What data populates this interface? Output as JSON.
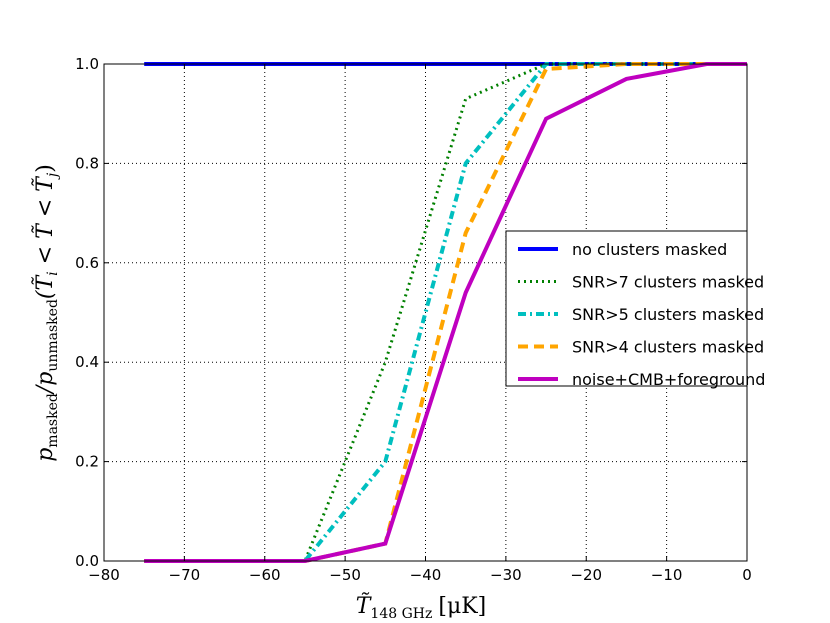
{
  "chart_data": {
    "type": "line",
    "xlabel": "T̃_148 GHz [μK]",
    "xlabel_main": "T̃",
    "xlabel_sub": "148 GHz",
    "xlabel_unit": "[μK]",
    "ylabel": "p_masked/p_unmasked(T̃_i < T̃ < T̃_j)",
    "ylabel_main": "p",
    "ylabel_sub1": "masked",
    "ylabel_sep": "/p",
    "ylabel_sub2": "unmasked",
    "ylabel_tail": "(T̃",
    "ylabel_i": "i",
    "ylabel_lt1": " < T̃ < T̃",
    "ylabel_j": "j",
    "ylabel_close": ")",
    "xlim": [
      -80,
      0
    ],
    "ylim": [
      0.0,
      1.0
    ],
    "xticks": [
      -80,
      -70,
      -60,
      -50,
      -40,
      -30,
      -20,
      -10,
      0
    ],
    "xtick_labels": [
      "−80",
      "−70",
      "−60",
      "−50",
      "−40",
      "−30",
      "−20",
      "−10",
      "0"
    ],
    "yticks": [
      0.0,
      0.2,
      0.4,
      0.6,
      0.8,
      1.0
    ],
    "ytick_labels": [
      "0.0",
      "0.2",
      "0.4",
      "0.6",
      "0.8",
      "1.0"
    ],
    "grid": true,
    "legend_position": "center-right",
    "series": [
      {
        "name": "no clusters masked",
        "color": "#0000ff",
        "style": "solid",
        "x": [
          -75,
          -65,
          -55,
          -45,
          -35,
          -25,
          -15,
          -5,
          0
        ],
        "y": [
          1.0,
          1.0,
          1.0,
          1.0,
          1.0,
          1.0,
          1.0,
          1.0,
          1.0
        ]
      },
      {
        "name": "SNR>7 clusters masked",
        "color": "#008000",
        "style": "dotted",
        "x": [
          -75,
          -65,
          -55,
          -45,
          -35,
          -25,
          -15,
          -5,
          0
        ],
        "y": [
          0.0,
          0.0,
          0.0,
          0.4,
          0.93,
          1.0,
          1.0,
          1.0,
          1.0
        ]
      },
      {
        "name": "SNR>5 clusters masked",
        "color": "#00bfbf",
        "style": "dashdot",
        "x": [
          -75,
          -65,
          -55,
          -45,
          -35,
          -25,
          -15,
          -5,
          0
        ],
        "y": [
          0.0,
          0.0,
          0.0,
          0.2,
          0.8,
          1.0,
          1.0,
          1.0,
          1.0
        ]
      },
      {
        "name": "SNR>4 clusters masked",
        "color": "#ffa500",
        "style": "dashed",
        "x": [
          -75,
          -65,
          -55,
          -45,
          -35,
          -25,
          -15,
          -5,
          0
        ],
        "y": [
          0.0,
          0.0,
          0.0,
          0.035,
          0.66,
          0.99,
          1.0,
          1.0,
          1.0
        ]
      },
      {
        "name": "noise+CMB+foreground",
        "color": "#bf00bf",
        "style": "solid",
        "x": [
          -75,
          -65,
          -55,
          -45,
          -35,
          -25,
          -15,
          -5,
          0
        ],
        "y": [
          0.0,
          0.0,
          0.0,
          0.035,
          0.54,
          0.89,
          0.97,
          1.0,
          1.0
        ]
      }
    ]
  }
}
